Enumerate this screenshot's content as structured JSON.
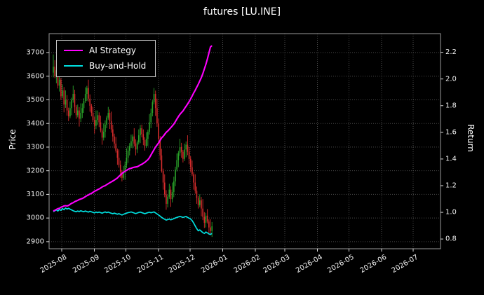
{
  "chart_data": {
    "type": "candlestick+line",
    "title": "futures [LU.INE]",
    "background": "#000000",
    "text_color": "#ffffff",
    "grid": {
      "on": true,
      "style": "dotted",
      "color": "#4a4a4a"
    },
    "x_axis": {
      "start_date_of_axis": "2025-07-20",
      "range_days": [
        0,
        372
      ],
      "tick_days": [
        12,
        43,
        73,
        104,
        134,
        165,
        196,
        224,
        255,
        285,
        316,
        346
      ],
      "tick_labels": [
        "2025-08",
        "2025-09",
        "2025-10",
        "2025-11",
        "2025-12",
        "2026-01",
        "2026-02",
        "2026-03",
        "2026-04",
        "2026-05",
        "2026-06",
        "2026-07"
      ],
      "label_rotation_deg": 30
    },
    "left_axis": {
      "label": "Price",
      "ticks": [
        2900,
        3000,
        3100,
        3200,
        3300,
        3400,
        3500,
        3600,
        3700
      ],
      "range": [
        2870,
        3780
      ]
    },
    "right_axis": {
      "label": "Return",
      "ticks": [
        0.8,
        1.0,
        1.2,
        1.4,
        1.6,
        1.8,
        2.0,
        2.2
      ],
      "range": [
        0.727,
        2.34
      ]
    },
    "legend": {
      "position": "upper-left",
      "entries": [
        {
          "label": "AI Strategy",
          "color": "#ff00ff"
        },
        {
          "label": "Buy-and-Hold",
          "color": "#00e0e0"
        }
      ]
    },
    "candles": {
      "up_color": "#2aa52a",
      "down_color": "#d62c2c",
      "start_date": "2025-07-24",
      "approx_end_date": "2025-12-22",
      "first_day": 4,
      "day_step": 1.45,
      "ohlc_format": [
        "open",
        "high",
        "low",
        "close"
      ],
      "ohlc": [
        [
          3615,
          3692,
          3595,
          3640
        ],
        [
          3640,
          3668,
          3592,
          3600
        ],
        [
          3600,
          3634,
          3570,
          3625
        ],
        [
          3625,
          3660,
          3548,
          3560
        ],
        [
          3560,
          3603,
          3535,
          3585
        ],
        [
          3585,
          3593,
          3500,
          3515
        ],
        [
          3515,
          3565,
          3506,
          3540
        ],
        [
          3540,
          3554,
          3447,
          3480
        ],
        [
          3480,
          3540,
          3466,
          3500
        ],
        [
          3500,
          3520,
          3433,
          3455
        ],
        [
          3455,
          3467,
          3410,
          3430
        ],
        [
          3430,
          3493,
          3422,
          3465
        ],
        [
          3465,
          3509,
          3435,
          3500
        ],
        [
          3500,
          3560,
          3488,
          3525
        ],
        [
          3525,
          3543,
          3445,
          3470
        ],
        [
          3470,
          3478,
          3420,
          3435
        ],
        [
          3435,
          3480,
          3426,
          3455
        ],
        [
          3455,
          3469,
          3387,
          3420
        ],
        [
          3420,
          3485,
          3406,
          3445
        ],
        [
          3445,
          3485,
          3423,
          3465
        ],
        [
          3465,
          3507,
          3445,
          3495
        ],
        [
          3495,
          3553,
          3487,
          3525
        ],
        [
          3525,
          3559,
          3495,
          3550
        ],
        [
          3550,
          3585,
          3493,
          3505
        ],
        [
          3505,
          3523,
          3450,
          3475
        ],
        [
          3475,
          3483,
          3430,
          3445
        ],
        [
          3445,
          3470,
          3406,
          3415
        ],
        [
          3415,
          3429,
          3357,
          3390
        ],
        [
          3390,
          3455,
          3376,
          3415
        ],
        [
          3415,
          3455,
          3393,
          3435
        ],
        [
          3435,
          3447,
          3385,
          3405
        ],
        [
          3405,
          3433,
          3362,
          3370
        ],
        [
          3370,
          3379,
          3310,
          3340
        ],
        [
          3340,
          3400,
          3328,
          3365
        ],
        [
          3365,
          3413,
          3340,
          3395
        ],
        [
          3395,
          3433,
          3380,
          3425
        ],
        [
          3425,
          3470,
          3416,
          3445
        ],
        [
          3445,
          3459,
          3377,
          3410
        ],
        [
          3410,
          3450,
          3361,
          3375
        ],
        [
          3375,
          3395,
          3323,
          3345
        ],
        [
          3345,
          3357,
          3295,
          3315
        ],
        [
          3315,
          3343,
          3277,
          3285
        ],
        [
          3285,
          3294,
          3225,
          3255
        ],
        [
          3255,
          3290,
          3213,
          3225
        ],
        [
          3225,
          3243,
          3170,
          3195
        ],
        [
          3195,
          3203,
          3155,
          3170
        ],
        [
          3170,
          3220,
          3161,
          3195
        ],
        [
          3195,
          3239,
          3162,
          3225
        ],
        [
          3225,
          3295,
          3211,
          3255
        ],
        [
          3255,
          3305,
          3233,
          3285
        ],
        [
          3285,
          3317,
          3265,
          3305
        ],
        [
          3305,
          3353,
          3297,
          3325
        ],
        [
          3325,
          3354,
          3295,
          3345
        ],
        [
          3345,
          3380,
          3303,
          3315
        ],
        [
          3315,
          3333,
          3265,
          3290
        ],
        [
          3290,
          3328,
          3275,
          3320
        ],
        [
          3320,
          3375,
          3311,
          3350
        ],
        [
          3350,
          3394,
          3317,
          3380
        ],
        [
          3380,
          3395,
          3341,
          3355
        ],
        [
          3355,
          3375,
          3308,
          3330
        ],
        [
          3330,
          3342,
          3285,
          3305
        ],
        [
          3305,
          3363,
          3297,
          3335
        ],
        [
          3335,
          3374,
          3305,
          3365
        ],
        [
          3365,
          3440,
          3353,
          3405
        ],
        [
          3405,
          3463,
          3380,
          3445
        ],
        [
          3445,
          3498,
          3430,
          3490
        ],
        [
          3490,
          3550,
          3481,
          3525
        ],
        [
          3525,
          3539,
          3432,
          3465
        ],
        [
          3465,
          3505,
          3386,
          3400
        ],
        [
          3400,
          3420,
          3313,
          3335
        ],
        [
          3335,
          3347,
          3245,
          3265
        ],
        [
          3265,
          3293,
          3192,
          3200
        ],
        [
          3200,
          3209,
          3120,
          3150
        ],
        [
          3150,
          3185,
          3088,
          3100
        ],
        [
          3100,
          3118,
          3035,
          3060
        ],
        [
          3060,
          3098,
          3045,
          3090
        ],
        [
          3090,
          3145,
          3081,
          3120
        ],
        [
          3120,
          3134,
          3047,
          3080
        ],
        [
          3080,
          3150,
          3066,
          3110
        ],
        [
          3110,
          3175,
          3088,
          3155
        ],
        [
          3155,
          3217,
          3135,
          3205
        ],
        [
          3205,
          3273,
          3197,
          3245
        ],
        [
          3245,
          3284,
          3215,
          3275
        ],
        [
          3275,
          3335,
          3263,
          3300
        ],
        [
          3300,
          3318,
          3255,
          3280
        ],
        [
          3280,
          3288,
          3235,
          3250
        ],
        [
          3250,
          3315,
          3241,
          3290
        ],
        [
          3290,
          3324,
          3257,
          3310
        ],
        [
          3310,
          3350,
          3266,
          3280
        ],
        [
          3280,
          3300,
          3228,
          3250
        ],
        [
          3250,
          3262,
          3195,
          3215
        ],
        [
          3215,
          3243,
          3177,
          3185
        ],
        [
          3185,
          3194,
          3120,
          3150
        ],
        [
          3150,
          3185,
          3103,
          3115
        ],
        [
          3115,
          3133,
          3060,
          3085
        ],
        [
          3085,
          3093,
          3040,
          3055
        ],
        [
          3055,
          3100,
          3046,
          3075
        ],
        [
          3075,
          3089,
          3007,
          3040
        ],
        [
          3040,
          3080,
          2991,
          3005
        ],
        [
          3005,
          3025,
          2958,
          2980
        ],
        [
          2980,
          3022,
          2960,
          3010
        ],
        [
          3010,
          3038,
          2977,
          2985
        ],
        [
          2985,
          2994,
          2930,
          2960
        ],
        [
          2960,
          2995,
          2933,
          2945
        ],
        [
          2945,
          2983,
          2920,
          2965
        ]
      ]
    },
    "series": [
      {
        "name": "AI Strategy",
        "axis": "right",
        "color": "#ff00ff",
        "values": [
          1.01,
          1.015,
          1.022,
          1.028,
          1.03,
          1.038,
          1.042,
          1.048,
          1.05,
          1.048,
          1.052,
          1.06,
          1.068,
          1.072,
          1.08,
          1.085,
          1.09,
          1.096,
          1.1,
          1.104,
          1.11,
          1.118,
          1.125,
          1.13,
          1.138,
          1.142,
          1.15,
          1.158,
          1.163,
          1.17,
          1.175,
          1.182,
          1.19,
          1.196,
          1.2,
          1.208,
          1.215,
          1.222,
          1.228,
          1.235,
          1.242,
          1.25,
          1.258,
          1.27,
          1.28,
          1.292,
          1.3,
          1.308,
          1.315,
          1.322,
          1.328,
          1.33,
          1.335,
          1.338,
          1.34,
          1.342,
          1.348,
          1.355,
          1.36,
          1.368,
          1.375,
          1.385,
          1.395,
          1.41,
          1.43,
          1.45,
          1.47,
          1.49,
          1.505,
          1.52,
          1.54,
          1.558,
          1.57,
          1.585,
          1.6,
          1.61,
          1.622,
          1.635,
          1.648,
          1.662,
          1.68,
          1.7,
          1.718,
          1.735,
          1.748,
          1.76,
          1.778,
          1.795,
          1.812,
          1.83,
          1.85,
          1.872,
          1.895,
          1.915,
          1.938,
          1.96,
          1.985,
          2.01,
          2.04,
          2.075,
          2.11,
          2.15,
          2.195,
          2.24,
          2.25
        ]
      },
      {
        "name": "Buy-and-Hold",
        "axis": "right",
        "color": "#00e0e0",
        "values": [
          1.005,
          1.012,
          1.018,
          1.01,
          1.022,
          1.015,
          1.028,
          1.02,
          1.032,
          1.025,
          1.03,
          1.024,
          1.018,
          1.012,
          1.008,
          1.005,
          1.01,
          1.006,
          1.012,
          1.008,
          1.005,
          1.01,
          1.006,
          1.002,
          1.008,
          1.004,
          1.0,
          0.996,
          1.002,
          0.998,
          1.002,
          0.998,
          0.994,
          0.999,
          1.003,
          0.998,
          1.002,
          0.997,
          0.993,
          0.99,
          0.994,
          0.99,
          0.986,
          0.99,
          0.985,
          0.98,
          0.985,
          0.99,
          0.994,
          0.998,
          1.0,
          1.003,
          0.999,
          0.995,
          0.991,
          0.995,
          0.999,
          1.002,
          0.998,
          0.994,
          0.99,
          0.994,
          0.998,
          1.001,
          0.997,
          1.0,
          1.003,
          0.996,
          0.988,
          0.98,
          0.972,
          0.962,
          0.955,
          0.948,
          0.942,
          0.946,
          0.95,
          0.944,
          0.948,
          0.953,
          0.958,
          0.962,
          0.966,
          0.97,
          0.966,
          0.962,
          0.966,
          0.969,
          0.962,
          0.956,
          0.95,
          0.938,
          0.92,
          0.898,
          0.878,
          0.862,
          0.868,
          0.858,
          0.848,
          0.842,
          0.852,
          0.846,
          0.838,
          0.834,
          0.842
        ]
      }
    ]
  }
}
